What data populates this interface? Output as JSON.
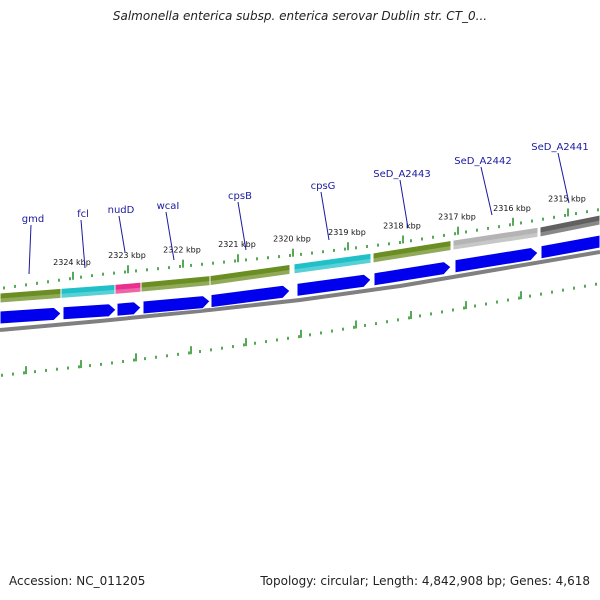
{
  "title": "Salmonella enterica subsp. enterica serovar Dublin str. CT_0...",
  "footer": {
    "accession": "Accession: NC_011205",
    "info": "Topology: circular; Length: 4,842,908 bp; Genes: 4,618"
  },
  "colors": {
    "tick": "#1e8c1e",
    "cds": "#0000ee",
    "backbone": "#808080",
    "gene_green": "#6b8e23",
    "gene_cyan": "#20c0c8",
    "gene_magenta": "#e8308c",
    "gene_light": "#b4b4b4",
    "gene_dark": "#606060",
    "gene_label": "#1a1aa0"
  },
  "ticks": [
    {
      "label": "2324 kbp"
    },
    {
      "label": "2323 kbp"
    },
    {
      "label": "2322 kbp"
    },
    {
      "label": "2321 kbp"
    },
    {
      "label": "2320 kbp"
    },
    {
      "label": "2319 kbp"
    },
    {
      "label": "2318 kbp"
    },
    {
      "label": "2317 kbp"
    },
    {
      "label": "2316 kbp"
    },
    {
      "label": "2315 kbp"
    }
  ],
  "gene_labels": [
    {
      "text": "gmd"
    },
    {
      "text": "fcl"
    },
    {
      "text": "nudD"
    },
    {
      "text": "wcaI"
    },
    {
      "text": "cpsB"
    },
    {
      "text": "cpsG"
    },
    {
      "text": "SeD_A2443"
    },
    {
      "text": "SeD_A2442"
    },
    {
      "text": "SeD_A2441"
    }
  ],
  "genes": [
    {
      "name": "gmd",
      "color": "gene_green"
    },
    {
      "name": "fcl",
      "color": "gene_cyan"
    },
    {
      "name": "nudD",
      "color": "gene_magenta"
    },
    {
      "name": "wcaI",
      "color": "gene_green"
    },
    {
      "name": "cpsB",
      "color": "gene_green"
    },
    {
      "name": "cpsG",
      "color": "gene_cyan"
    },
    {
      "name": "SeD_A2443",
      "color": "gene_green"
    },
    {
      "name": "SeD_A2442",
      "color": "gene_light"
    },
    {
      "name": "SeD_A2441",
      "color": "gene_dark"
    }
  ]
}
